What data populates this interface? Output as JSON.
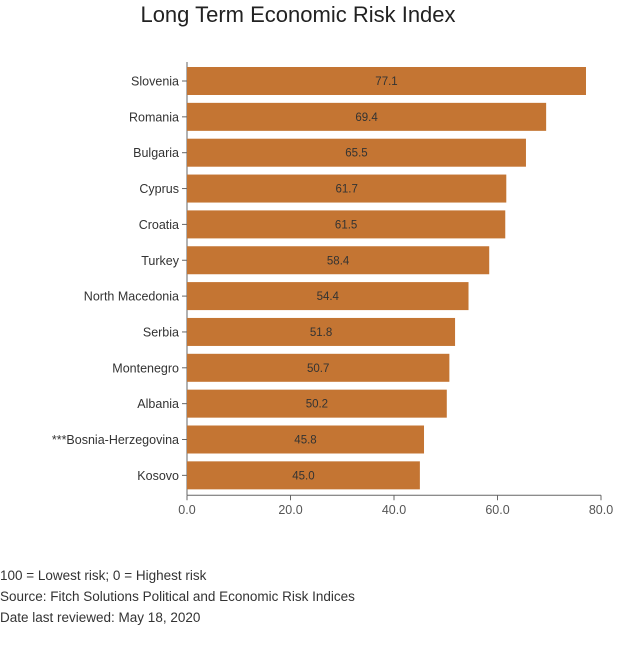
{
  "chart_data": {
    "type": "bar",
    "orientation": "horizontal",
    "title": "Long Term Economic Risk Index",
    "categories": [
      "Slovenia",
      "Romania",
      "Bulgaria",
      "Cyprus",
      "Croatia",
      "Turkey",
      "North Macedonia",
      "Serbia",
      "Montenegro",
      "Albania",
      "***Bosnia-Herzegovina",
      "Kosovo"
    ],
    "values": [
      77.1,
      69.4,
      65.5,
      61.7,
      61.5,
      58.4,
      54.4,
      51.8,
      50.7,
      50.2,
      45.8,
      45.0
    ],
    "value_labels": [
      "77.1",
      "69.4",
      "65.5",
      "61.7",
      "61.5",
      "58.4",
      "54.4",
      "51.8",
      "50.7",
      "50.2",
      "45.8",
      "45.0"
    ],
    "xlim": [
      0,
      80
    ],
    "xticks": [
      0,
      20,
      40,
      60,
      80
    ],
    "xtick_labels": [
      "0.0",
      "20.0",
      "40.0",
      "60.0",
      "80.0"
    ],
    "xlabel": "",
    "ylabel": "",
    "grid": false,
    "legend": "none",
    "bar_color": "#c47533"
  },
  "notes": [
    "100 = Lowest risk; 0 = Highest risk",
    "Source: Fitch Solutions Political and Economic Risk Indices",
    "Date last reviewed: May 18, 2020"
  ]
}
